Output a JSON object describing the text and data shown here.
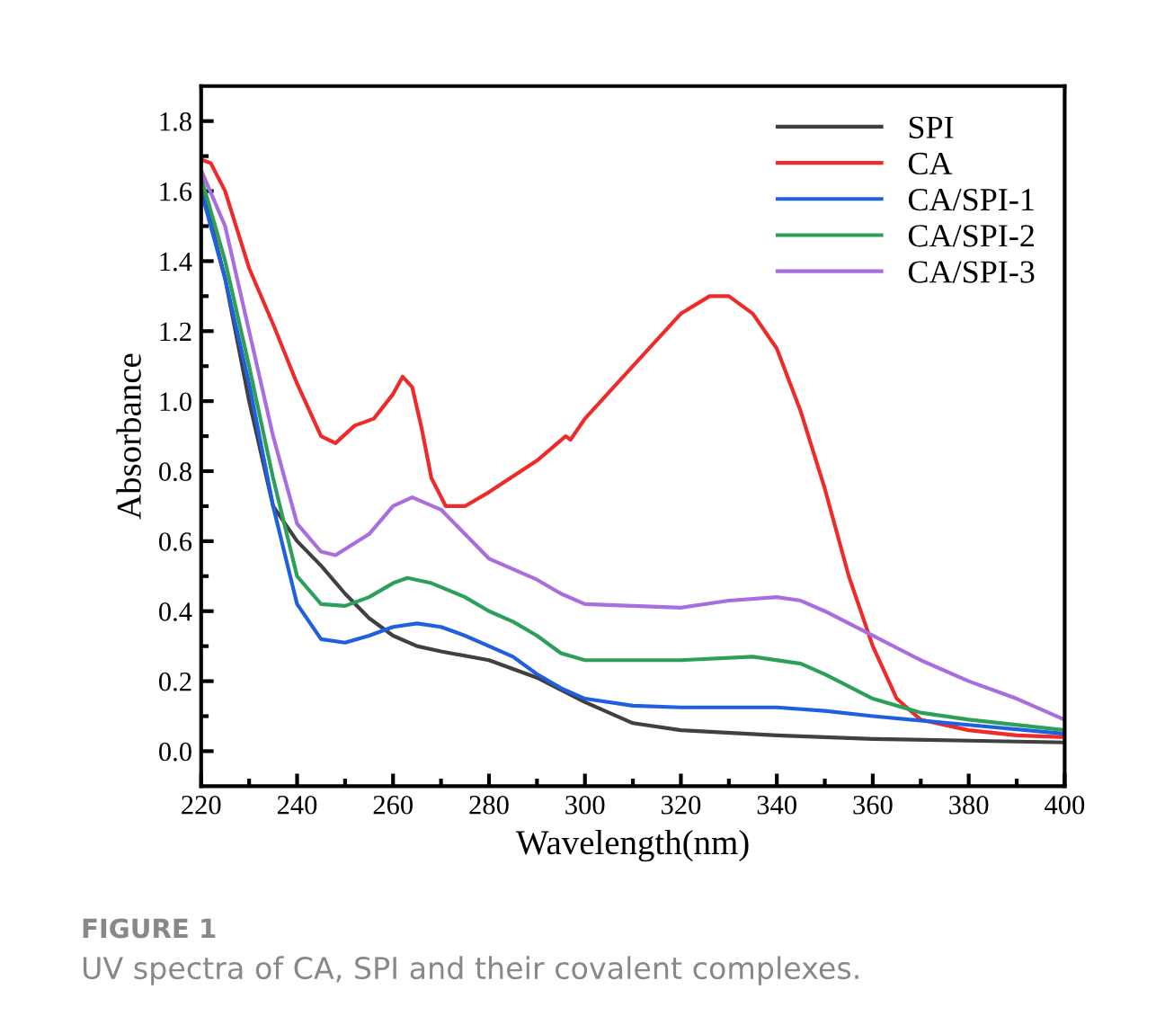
{
  "chart_data": {
    "type": "line",
    "xlabel": "Wavelength(nm)",
    "ylabel": "Absorbance",
    "xlim": [
      220,
      400
    ],
    "xticks": [
      220,
      240,
      260,
      280,
      300,
      320,
      340,
      360,
      380,
      400
    ],
    "ylim": [
      -0.1,
      1.9
    ],
    "yticks": [
      {
        "value": 0,
        "label": "0.0"
      },
      0.2,
      0.4,
      0.6,
      0.8,
      {
        "value": 1,
        "label": "1.0"
      },
      1.2,
      1.4,
      1.6,
      1.8
    ],
    "grid": false,
    "legend": "top right",
    "marker": "none",
    "line_style": "solid",
    "annotations": [
      "FIGURE 1",
      "UV spectra of CA, SPI and their covalent complexes."
    ],
    "series": [
      {
        "name": "SPI",
        "color": "#404040",
        "x": [
          220,
          225,
          230,
          235,
          240,
          245,
          250,
          255,
          260,
          265,
          270,
          280,
          290,
          300,
          310,
          320,
          340,
          360,
          380,
          400
        ],
        "values": [
          1.62,
          1.35,
          1.0,
          0.7,
          0.6,
          0.53,
          0.45,
          0.38,
          0.33,
          0.3,
          0.285,
          0.26,
          0.21,
          0.14,
          0.08,
          0.06,
          0.045,
          0.035,
          0.03,
          0.025
        ]
      },
      {
        "name": "CA",
        "color": "#ee2a2a",
        "x": [
          220,
          222,
          225,
          230,
          235,
          240,
          245,
          248,
          252,
          256,
          260,
          262,
          264,
          266,
          268,
          271,
          275,
          280,
          290,
          296,
          297,
          300,
          310,
          320,
          326,
          330,
          335,
          340,
          345,
          350,
          355,
          360,
          365,
          370,
          380,
          390,
          400
        ],
        "values": [
          1.69,
          1.68,
          1.6,
          1.38,
          1.22,
          1.05,
          0.9,
          0.88,
          0.93,
          0.95,
          1.02,
          1.07,
          1.04,
          0.92,
          0.78,
          0.7,
          0.7,
          0.74,
          0.83,
          0.9,
          0.89,
          0.95,
          1.1,
          1.25,
          1.3,
          1.3,
          1.25,
          1.15,
          0.97,
          0.75,
          0.5,
          0.3,
          0.15,
          0.09,
          0.06,
          0.045,
          0.04
        ]
      },
      {
        "name": "CA/SPI-1",
        "color": "#1f5fe0",
        "x": [
          220,
          225,
          230,
          235,
          240,
          245,
          250,
          255,
          260,
          265,
          270,
          275,
          280,
          285,
          290,
          295,
          300,
          310,
          320,
          340,
          350,
          360,
          380,
          400
        ],
        "values": [
          1.6,
          1.35,
          1.05,
          0.7,
          0.42,
          0.32,
          0.31,
          0.33,
          0.355,
          0.365,
          0.355,
          0.33,
          0.3,
          0.27,
          0.22,
          0.18,
          0.15,
          0.13,
          0.125,
          0.125,
          0.115,
          0.1,
          0.075,
          0.05
        ]
      },
      {
        "name": "CA/SPI-2",
        "color": "#2ca05a",
        "x": [
          220,
          225,
          230,
          235,
          240,
          245,
          250,
          255,
          260,
          263,
          268,
          275,
          280,
          285,
          290,
          295,
          300,
          320,
          335,
          345,
          350,
          360,
          370,
          380,
          400
        ],
        "values": [
          1.64,
          1.4,
          1.1,
          0.78,
          0.5,
          0.42,
          0.415,
          0.44,
          0.48,
          0.495,
          0.48,
          0.44,
          0.4,
          0.37,
          0.33,
          0.28,
          0.26,
          0.26,
          0.27,
          0.25,
          0.22,
          0.15,
          0.11,
          0.09,
          0.06
        ]
      },
      {
        "name": "CA/SPI-3",
        "color": "#a86ee0",
        "x": [
          220,
          225,
          230,
          235,
          240,
          245,
          248,
          255,
          260,
          264,
          270,
          275,
          280,
          290,
          295,
          300,
          320,
          330,
          340,
          345,
          350,
          360,
          370,
          380,
          390,
          400
        ],
        "values": [
          1.66,
          1.5,
          1.2,
          0.9,
          0.65,
          0.57,
          0.56,
          0.62,
          0.7,
          0.725,
          0.69,
          0.62,
          0.55,
          0.49,
          0.45,
          0.42,
          0.41,
          0.43,
          0.44,
          0.43,
          0.4,
          0.33,
          0.26,
          0.2,
          0.15,
          0.09
        ]
      }
    ]
  }
}
